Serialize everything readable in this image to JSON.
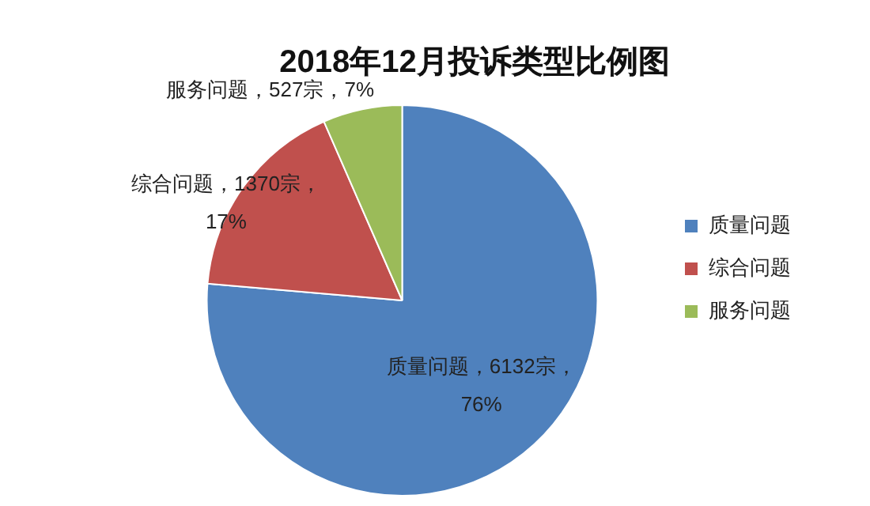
{
  "chart_data": {
    "type": "pie",
    "title": "2018年12月投诉类型比例图",
    "categories": [
      "质量问题",
      "综合问题",
      "服务问题"
    ],
    "values": [
      6132,
      1370,
      527
    ],
    "colors": [
      "#4f81bd",
      "#c0504d",
      "#9bbb59"
    ],
    "value_labels": [
      "质量问题，6132宗，76%",
      "综合问题，1370宗，17%",
      "服务问题，527宗，7%"
    ],
    "legend": "right"
  }
}
